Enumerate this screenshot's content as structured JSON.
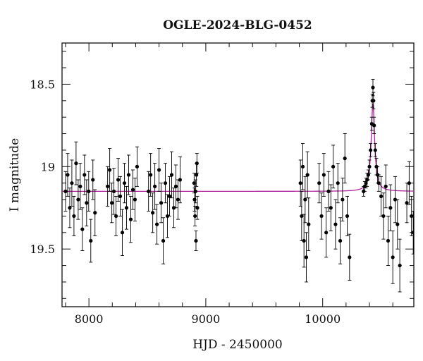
{
  "chart_data": {
    "type": "scatter",
    "title": "OGLE-2024-BLG-0452",
    "xlabel": "HJD - 2450000",
    "ylabel": "I magnitude",
    "xlim": [
      7770,
      10780
    ],
    "ylim": [
      19.85,
      18.25
    ],
    "y_inverted": true,
    "grid": false,
    "x_ticks": [
      {
        "value": 8000,
        "label": "8000"
      },
      {
        "value": 9000,
        "label": "9000"
      },
      {
        "value": 10000,
        "label": "10000"
      }
    ],
    "y_ticks": [
      {
        "value": 18.5,
        "label": "18.5"
      },
      {
        "value": 19,
        "label": "19"
      },
      {
        "value": 19.5,
        "label": "19.5"
      }
    ],
    "x_minor_step": 200,
    "y_minor_step": 0.1,
    "colors": {
      "data": "#000000",
      "model": "#b0209c"
    },
    "series": [
      {
        "kind": "data-points-with-errorbars",
        "points": [
          [
            7800,
            19.15,
            0.12
          ],
          [
            7818,
            19.05,
            0.13
          ],
          [
            7836,
            19.25,
            0.12
          ],
          [
            7854,
            19.1,
            0.14
          ],
          [
            7872,
            19.3,
            0.12
          ],
          [
            7890,
            18.98,
            0.13
          ],
          [
            7908,
            19.2,
            0.12
          ],
          [
            7926,
            19.12,
            0.14
          ],
          [
            7944,
            19.38,
            0.13
          ],
          [
            7962,
            19.05,
            0.12
          ],
          [
            7980,
            19.22,
            0.14
          ],
          [
            7998,
            19.15,
            0.12
          ],
          [
            8016,
            19.45,
            0.13
          ],
          [
            8034,
            19.08,
            0.12
          ],
          [
            8052,
            19.28,
            0.14
          ],
          [
            8160,
            19.12,
            0.12
          ],
          [
            8178,
            19.02,
            0.13
          ],
          [
            8196,
            19.22,
            0.12
          ],
          [
            8214,
            19.15,
            0.14
          ],
          [
            8232,
            19.3,
            0.12
          ],
          [
            8250,
            19.08,
            0.13
          ],
          [
            8268,
            19.18,
            0.12
          ],
          [
            8286,
            19.4,
            0.14
          ],
          [
            8304,
            19.1,
            0.12
          ],
          [
            8322,
            19.25,
            0.13
          ],
          [
            8340,
            19.05,
            0.12
          ],
          [
            8358,
            19.32,
            0.14
          ],
          [
            8376,
            19.14,
            0.12
          ],
          [
            8394,
            19.2,
            0.13
          ],
          [
            8412,
            19.0,
            0.12
          ],
          [
            8510,
            19.15,
            0.12
          ],
          [
            8528,
            19.05,
            0.13
          ],
          [
            8546,
            19.28,
            0.12
          ],
          [
            8564,
            19.12,
            0.14
          ],
          [
            8582,
            19.35,
            0.12
          ],
          [
            8600,
            19.02,
            0.13
          ],
          [
            8618,
            19.22,
            0.12
          ],
          [
            8636,
            19.45,
            0.14
          ],
          [
            8654,
            19.1,
            0.12
          ],
          [
            8672,
            19.3,
            0.13
          ],
          [
            8690,
            19.18,
            0.12
          ],
          [
            8708,
            19.05,
            0.14
          ],
          [
            8726,
            19.25,
            0.12
          ],
          [
            8744,
            19.12,
            0.13
          ],
          [
            8762,
            19.2,
            0.12
          ],
          [
            8780,
            19.08,
            0.14
          ],
          [
            8900,
            19.1,
            0.06
          ],
          [
            8904,
            19.2,
            0.07
          ],
          [
            8908,
            19.3,
            0.06
          ],
          [
            8912,
            19.15,
            0.07
          ],
          [
            8916,
            19.45,
            0.06
          ],
          [
            8920,
            19.05,
            0.07
          ],
          [
            8924,
            18.98,
            0.06
          ],
          [
            8928,
            19.25,
            0.07
          ],
          [
            9810,
            19.1,
            0.14
          ],
          [
            9820,
            19.3,
            0.15
          ],
          [
            9830,
            19.0,
            0.14
          ],
          [
            9840,
            19.45,
            0.16
          ],
          [
            9850,
            19.2,
            0.14
          ],
          [
            9860,
            19.55,
            0.15
          ],
          [
            9870,
            19.05,
            0.14
          ],
          [
            9880,
            19.35,
            0.16
          ],
          [
            9970,
            19.1,
            0.12
          ],
          [
            9990,
            19.3,
            0.14
          ],
          [
            10010,
            19.05,
            0.13
          ],
          [
            10030,
            19.4,
            0.15
          ],
          [
            10050,
            19.15,
            0.12
          ],
          [
            10070,
            19.25,
            0.14
          ],
          [
            10090,
            19.0,
            0.13
          ],
          [
            10110,
            19.35,
            0.15
          ],
          [
            10130,
            19.1,
            0.12
          ],
          [
            10150,
            19.45,
            0.14
          ],
          [
            10170,
            19.2,
            0.13
          ],
          [
            10190,
            18.95,
            0.15
          ],
          [
            10210,
            19.3,
            0.12
          ],
          [
            10230,
            19.55,
            0.14
          ],
          [
            10350,
            19.15,
            0.03
          ],
          [
            10360,
            19.12,
            0.03
          ],
          [
            10370,
            19.1,
            0.03
          ],
          [
            10380,
            19.08,
            0.04
          ],
          [
            10390,
            19.05,
            0.03
          ],
          [
            10400,
            19.0,
            0.04
          ],
          [
            10410,
            18.9,
            0.04
          ],
          [
            10420,
            18.74,
            0.04
          ],
          [
            10425,
            18.6,
            0.04
          ],
          [
            10430,
            18.52,
            0.05
          ],
          [
            10435,
            18.6,
            0.05
          ],
          [
            10440,
            18.75,
            0.05
          ],
          [
            10450,
            18.9,
            0.04
          ],
          [
            10460,
            19.0,
            0.05
          ],
          [
            10470,
            19.05,
            0.05
          ],
          [
            10480,
            19.1,
            0.05
          ],
          [
            10500,
            19.18,
            0.12
          ],
          [
            10520,
            19.3,
            0.14
          ],
          [
            10540,
            19.12,
            0.13
          ],
          [
            10560,
            19.45,
            0.15
          ],
          [
            10580,
            19.25,
            0.14
          ],
          [
            10600,
            19.55,
            0.16
          ],
          [
            10620,
            19.2,
            0.14
          ],
          [
            10640,
            19.35,
            0.15
          ],
          [
            10660,
            19.6,
            0.16
          ],
          [
            10720,
            19.22,
            0.12
          ],
          [
            10740,
            19.1,
            0.13
          ],
          [
            10760,
            19.3,
            0.12
          ],
          [
            10775,
            19.4,
            0.13
          ]
        ]
      },
      {
        "kind": "model-curve",
        "baseline_mag": 19.15,
        "peak_mag": 18.62,
        "t0": 10430,
        "tE": 18
      }
    ]
  }
}
